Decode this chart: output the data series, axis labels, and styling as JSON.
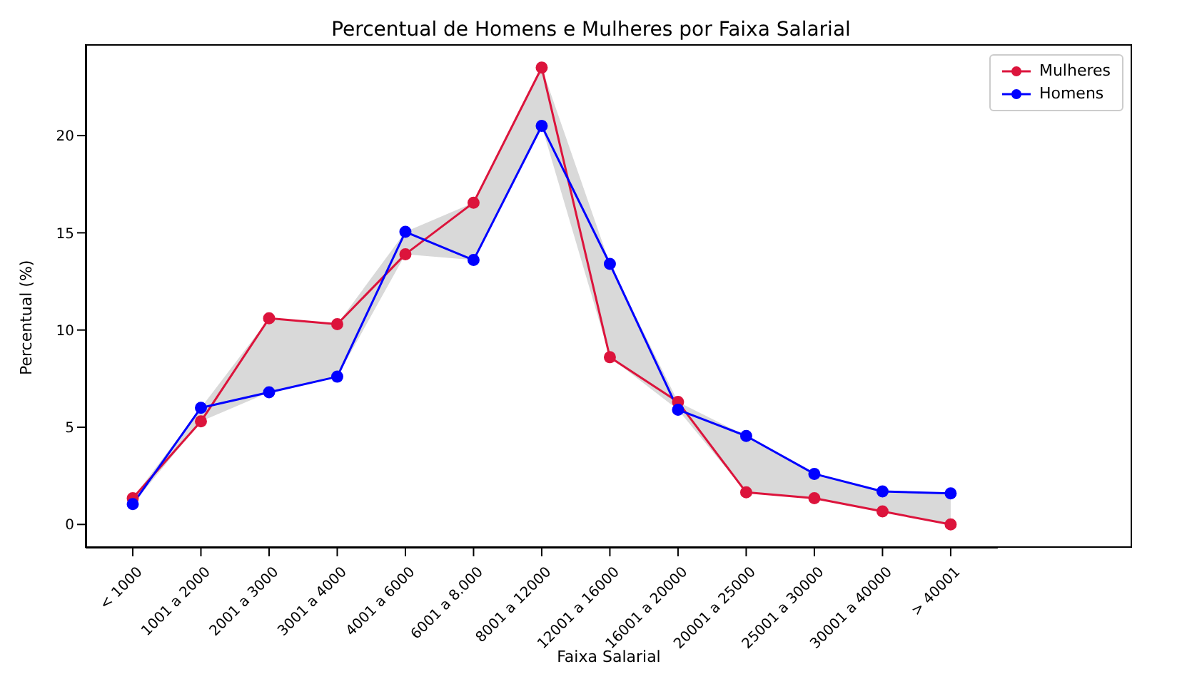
{
  "chart_data": {
    "type": "line",
    "title": "Percentual de Homens e Mulheres por Faixa Salarial",
    "xlabel": "Faixa Salarial",
    "ylabel": "Percentual (%)",
    "categories": [
      "< 1000",
      "1001 a 2000",
      "2001 a 3000",
      "3001 a 4000",
      "4001 a 6000",
      "6001 a 8.000",
      "8001 a 12000",
      "12001 a 16000",
      "16001 a 20000",
      "20001 a 25000",
      "25001 a 30000",
      "30001 a 40000",
      "> 40001"
    ],
    "series": [
      {
        "name": "Mulheres",
        "color": "#dc143c",
        "values": [
          1.35,
          5.3,
          10.6,
          10.3,
          13.9,
          16.55,
          23.5,
          8.6,
          6.3,
          1.65,
          1.35,
          0.67,
          0
        ],
        "lower": [
          1.05,
          5.3,
          6.8,
          7.6,
          13.9,
          13.6,
          20.5,
          8.6,
          5.9,
          1.65,
          1.35,
          0.67,
          0
        ],
        "upper": [
          1.35,
          6.0,
          10.6,
          10.3,
          15.05,
          16.55,
          23.5,
          13.4,
          6.3,
          4.55,
          2.6,
          1.7,
          1.6
        ]
      },
      {
        "name": "Homens",
        "color": "#0000ff",
        "values": [
          1.05,
          6.0,
          6.8,
          7.6,
          15.05,
          13.6,
          20.5,
          13.4,
          5.9,
          4.55,
          2.6,
          1.7,
          1.6
        ]
      }
    ],
    "ylim": [
      -1.2,
      24.7
    ],
    "yticks": [
      0,
      5,
      10,
      15,
      20
    ],
    "legend": "top right",
    "marker": "circle",
    "line_style": "solid"
  }
}
